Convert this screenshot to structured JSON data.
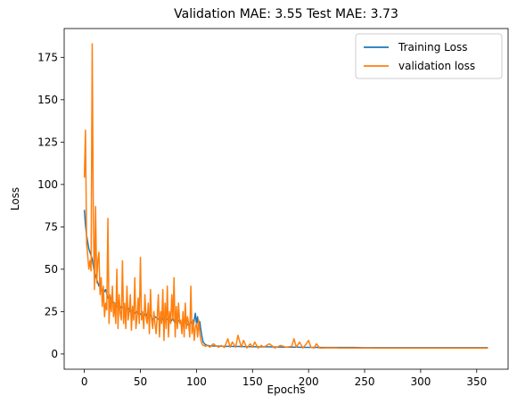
{
  "chart_data": {
    "type": "line",
    "title": "Validation MAE: 3.55 Test MAE: 3.73",
    "xlabel": "Epochs",
    "ylabel": "Loss",
    "xlim": [
      -18,
      378
    ],
    "ylim": [
      -9,
      192
    ],
    "xticks": [
      0,
      50,
      100,
      150,
      200,
      250,
      300,
      350
    ],
    "yticks": [
      0,
      25,
      50,
      75,
      100,
      125,
      150,
      175
    ],
    "grid": false,
    "legend": "top-right",
    "series": [
      {
        "name": "Training Loss",
        "color": "#1f77b4",
        "x": [
          0,
          1,
          2,
          3,
          4,
          5,
          6,
          7,
          8,
          9,
          10,
          11,
          12,
          13,
          14,
          15,
          17,
          19,
          21,
          23,
          25,
          27,
          29,
          31,
          33,
          35,
          37,
          39,
          41,
          43,
          45,
          47,
          49,
          51,
          53,
          55,
          57,
          59,
          61,
          63,
          65,
          67,
          69,
          71,
          73,
          75,
          77,
          79,
          81,
          83,
          85,
          87,
          89,
          91,
          93,
          95,
          97,
          99,
          100,
          101,
          102,
          103,
          104,
          105,
          106,
          108,
          110,
          112,
          115,
          120,
          125,
          130,
          135,
          140,
          145,
          150,
          155,
          160,
          165,
          170,
          175,
          180,
          185,
          190,
          195,
          200,
          205,
          210,
          220,
          230,
          240,
          250,
          260,
          270,
          280,
          290,
          300,
          310,
          320,
          330,
          340,
          350,
          360
        ],
        "y": [
          85,
          76,
          70,
          66,
          62,
          60,
          58,
          56,
          52,
          48,
          46,
          44,
          42,
          40,
          43,
          39,
          36,
          38,
          33,
          34,
          31,
          30,
          28,
          29,
          27,
          28,
          26,
          27,
          25,
          26,
          24,
          25,
          23,
          24,
          22,
          24,
          21,
          23,
          20,
          22,
          21,
          20,
          22,
          19,
          21,
          20,
          19,
          21,
          18,
          20,
          19,
          17,
          20,
          18,
          17,
          19,
          16,
          24,
          18,
          22,
          15,
          19,
          14,
          10,
          7,
          5.5,
          5,
          4.8,
          4.7,
          4.6,
          4.5,
          4.5,
          4.4,
          4.4,
          4.3,
          4.3,
          4.2,
          4.2,
          4.2,
          4.1,
          4.1,
          4.0,
          4.0,
          4.0,
          3.9,
          3.9,
          3.9,
          3.8,
          3.8,
          3.8,
          3.8,
          3.7,
          3.7,
          3.7,
          3.7,
          3.7,
          3.7,
          3.7,
          3.7,
          3.7,
          3.7,
          3.7,
          3.7
        ]
      },
      {
        "name": "validation loss",
        "color": "#ff7f0e",
        "x": [
          0,
          1,
          2,
          3,
          4,
          5,
          6,
          7,
          8,
          9,
          10,
          11,
          12,
          13,
          14,
          15,
          16,
          17,
          18,
          19,
          20,
          21,
          22,
          23,
          24,
          25,
          26,
          27,
          28,
          29,
          30,
          31,
          32,
          33,
          34,
          35,
          36,
          37,
          38,
          39,
          40,
          41,
          42,
          43,
          44,
          45,
          46,
          47,
          48,
          49,
          50,
          51,
          52,
          53,
          54,
          55,
          56,
          57,
          58,
          59,
          60,
          61,
          62,
          63,
          64,
          65,
          66,
          67,
          68,
          69,
          70,
          71,
          72,
          73,
          74,
          75,
          76,
          77,
          78,
          79,
          80,
          81,
          82,
          83,
          84,
          85,
          86,
          87,
          88,
          89,
          90,
          91,
          92,
          93,
          94,
          95,
          96,
          97,
          98,
          99,
          100,
          101,
          102,
          103,
          104,
          105,
          106,
          107,
          108,
          110,
          112,
          115,
          118,
          120,
          122,
          125,
          128,
          130,
          132,
          135,
          137,
          140,
          142,
          145,
          148,
          150,
          152,
          155,
          158,
          160,
          165,
          170,
          175,
          180,
          185,
          187,
          189,
          192,
          195,
          198,
          200,
          202,
          205,
          207,
          210,
          220,
          230,
          240,
          250,
          260,
          270,
          280,
          290,
          300,
          310,
          320,
          330,
          340,
          350,
          360
        ],
        "y": [
          104,
          132,
          65,
          58,
          50,
          55,
          49,
          183,
          80,
          38,
          87,
          42,
          55,
          60,
          35,
          45,
          28,
          40,
          22,
          30,
          26,
          80,
          18,
          35,
          25,
          40,
          22,
          30,
          18,
          50,
          15,
          35,
          24,
          20,
          55,
          18,
          30,
          15,
          40,
          20,
          25,
          35,
          14,
          28,
          20,
          45,
          15,
          22,
          33,
          18,
          57,
          20,
          25,
          15,
          35,
          22,
          18,
          30,
          12,
          38,
          20,
          15,
          25,
          18,
          12,
          22,
          35,
          10,
          25,
          18,
          38,
          8,
          30,
          15,
          40,
          10,
          25,
          18,
          35,
          20,
          45,
          10,
          28,
          15,
          30,
          18,
          20,
          12,
          25,
          10,
          30,
          15,
          22,
          18,
          10,
          40,
          12,
          20,
          8,
          16,
          18,
          10,
          20,
          12,
          8,
          6,
          5,
          5,
          4.5,
          5,
          4,
          6,
          4.5,
          4,
          5,
          3.8,
          9,
          4,
          7,
          4,
          11,
          4,
          8,
          3.5,
          6,
          4,
          7,
          3.5,
          5,
          4,
          6,
          3.5,
          5,
          4,
          4.5,
          9,
          4,
          7,
          3.5,
          6,
          8,
          4,
          3.5,
          6,
          3.5,
          3.6,
          3.5,
          3.5,
          3.5,
          3.4,
          3.4,
          3.4,
          3.4,
          3.4,
          3.4,
          3.4,
          3.4,
          3.4,
          3.4,
          3.4
        ]
      }
    ]
  }
}
